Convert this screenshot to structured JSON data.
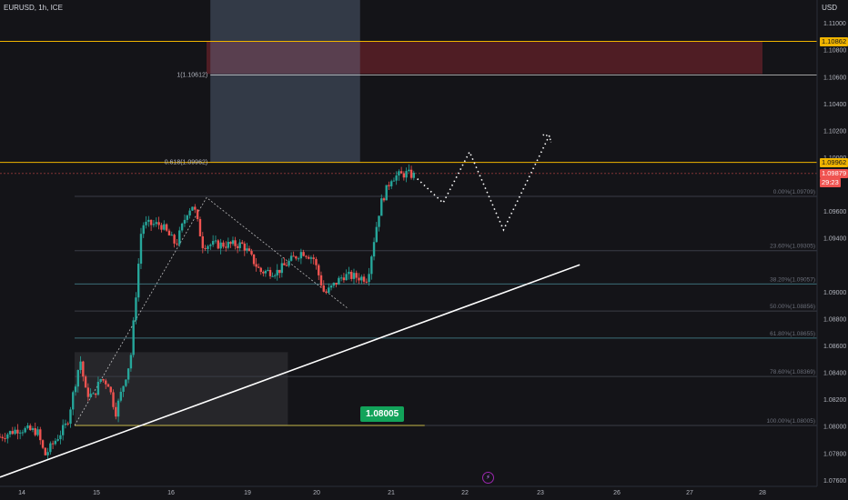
{
  "symbol": "EURUSD, 1h, ICE",
  "currency": "USD",
  "colors": {
    "bg": "#141418",
    "up": "#26a69a",
    "down": "#ef5350",
    "accent": "#f0b400"
  },
  "price_axis": [
    {
      "label": "1.11000",
      "price": 1.11
    },
    {
      "label": "1.10800",
      "price": 1.108
    },
    {
      "label": "1.10600",
      "price": 1.106
    },
    {
      "label": "1.10400",
      "price": 1.104
    },
    {
      "label": "1.10200",
      "price": 1.102
    },
    {
      "label": "1.10000",
      "price": 1.1
    },
    {
      "label": "1.09600",
      "price": 1.096
    },
    {
      "label": "1.09400",
      "price": 1.094
    },
    {
      "label": "1.09000",
      "price": 1.09
    },
    {
      "label": "1.08800",
      "price": 1.088
    },
    {
      "label": "1.08600",
      "price": 1.086
    },
    {
      "label": "1.08400",
      "price": 1.084
    },
    {
      "label": "1.08200",
      "price": 1.082
    },
    {
      "label": "1.08000",
      "price": 1.08
    },
    {
      "label": "1.07800",
      "price": 1.078
    },
    {
      "label": "1.07600",
      "price": 1.076
    }
  ],
  "time_axis": [
    "14",
    "15",
    "16",
    "19",
    "20",
    "21",
    "22",
    "23",
    "26",
    "27",
    "28"
  ],
  "badges": {
    "top": "1.10862",
    "fib618": "1.09962",
    "current": "1.09879",
    "countdown": "29:23"
  },
  "fib_left_labels": {
    "one": "1(1.10612)",
    "p618": "0.618(1.09962)"
  },
  "fib_levels": [
    {
      "label": "0.00%(1.09709)",
      "price": 1.09709
    },
    {
      "label": "23.60%(1.09305)",
      "price": 1.09305
    },
    {
      "label": "38.20%(1.09057)",
      "price": 1.09057
    },
    {
      "label": "50.00%(1.08856)",
      "price": 1.08856
    },
    {
      "label": "61.80%(1.08655)",
      "price": 1.08655
    },
    {
      "label": "78.60%(1.08369)",
      "price": 1.08369
    },
    {
      "label": "100.00%(1.08005)",
      "price": 1.08005
    }
  ],
  "support_label": "1.08005",
  "chart_data": {
    "type": "candlestick",
    "title": "EURUSD, 1h, ICE",
    "ylim": [
      1.0745,
      1.1117
    ],
    "x_ticks": [
      "14",
      "15",
      "16",
      "19",
      "20",
      "21",
      "22",
      "23",
      "26",
      "27",
      "28"
    ],
    "series": [
      {
        "name": "EURUSD",
        "anchors": [
          [
            0,
            1.0792
          ],
          [
            0.5,
            1.0798
          ],
          [
            1,
            1.0796
          ],
          [
            1.2,
            1.0778
          ],
          [
            1.8,
            1.0802
          ],
          [
            2.15,
            1.085
          ],
          [
            2.3,
            1.0825
          ],
          [
            2.5,
            1.0822
          ],
          [
            2.7,
            1.0835
          ],
          [
            2.9,
            1.0832
          ],
          [
            3.1,
            1.081
          ],
          [
            3.5,
            1.085
          ],
          [
            3.8,
            1.095
          ],
          [
            4.3,
            1.095
          ],
          [
            4.7,
            1.0935
          ],
          [
            5.0,
            1.096
          ],
          [
            5.15,
            1.0965
          ],
          [
            5.4,
            1.0935
          ],
          [
            6.5,
            1.0935
          ],
          [
            7.0,
            1.0915
          ],
          [
            7.5,
            1.0915
          ],
          [
            8.2,
            1.093
          ],
          [
            8.5,
            1.0925
          ],
          [
            8.8,
            1.0898
          ],
          [
            9.3,
            1.0912
          ],
          [
            9.95,
            1.091
          ],
          [
            10.1,
            1.0935
          ],
          [
            10.3,
            1.0965
          ],
          [
            10.6,
            1.0985
          ],
          [
            11.0,
            1.0988
          ],
          [
            11.25,
            1.0986
          ]
        ]
      }
    ],
    "projection_path": [
      [
        11.3,
        1.0984
      ],
      [
        12.0,
        1.0966
      ],
      [
        12.7,
        1.1004
      ],
      [
        13.6,
        1.0946
      ],
      [
        14.8,
        1.1016
      ]
    ],
    "trendline": {
      "start": [
        0,
        1.0762
      ],
      "end": [
        15.6,
        1.092
      ]
    },
    "zones": [
      {
        "name": "supply",
        "x0": 5.5,
        "x1": 20,
        "y0": 1.1062,
        "y1": 1.1086
      },
      {
        "name": "demand",
        "x0": 2.0,
        "x1": 7.8,
        "y0": 1.08005,
        "y1": 1.0855
      },
      {
        "name": "time-window",
        "x0": 5.6,
        "x1": 9.75,
        "y0": 1.09962,
        "y1": 1.1117
      }
    ],
    "fib_retracement": {
      "x0": 2.0,
      "x1": 20,
      "high": 1.09709,
      "low": 1.08005
    },
    "extension_levels": [
      1.10612,
      1.09962,
      1.10862
    ],
    "abc_path": [
      [
        2.0,
        1.08005
      ],
      [
        5.5,
        1.097
      ],
      [
        9.4,
        1.0888
      ]
    ]
  }
}
